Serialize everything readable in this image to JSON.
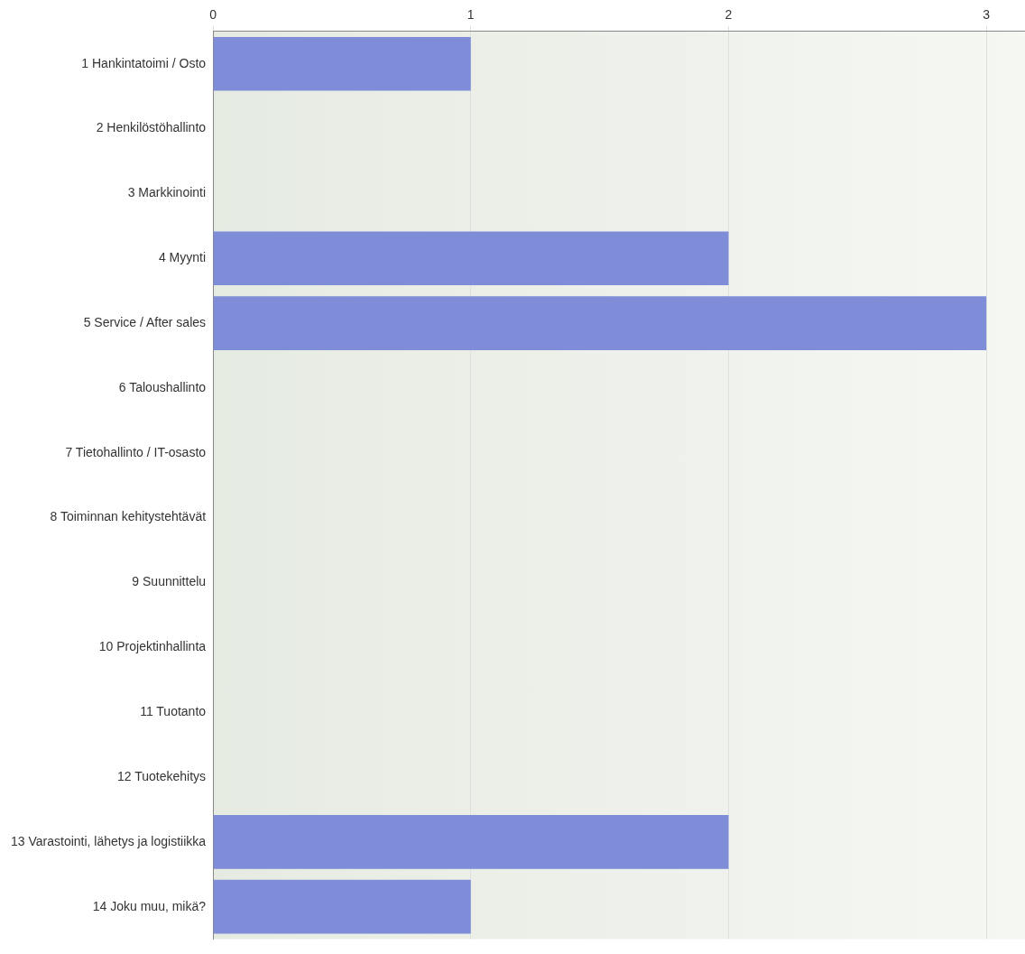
{
  "chart_data": {
    "type": "bar",
    "orientation": "horizontal",
    "categories": [
      "1 Hankintatoimi / Osto",
      "2 Henkilöstöhallinto",
      "3 Markkinointi",
      "4 Myynti",
      "5 Service / After sales",
      "6 Taloushallinto",
      "7 Tietohallinto / IT-osasto",
      "8 Toiminnan kehitystehtävät",
      "9 Suunnittelu",
      "10 Projektinhallinta",
      "11 Tuotanto",
      "12 Tuotekehitys",
      "13 Varastointi, lähetys ja logistiikka",
      "14 Joku muu, mikä?"
    ],
    "values": [
      1,
      0,
      0,
      2,
      3,
      0,
      0,
      0,
      0,
      0,
      0,
      0,
      2,
      1
    ],
    "color": "#7f8dd8",
    "xlim": [
      0,
      3.15
    ],
    "xticks": [
      0,
      1,
      2,
      3
    ],
    "grid": "x"
  }
}
